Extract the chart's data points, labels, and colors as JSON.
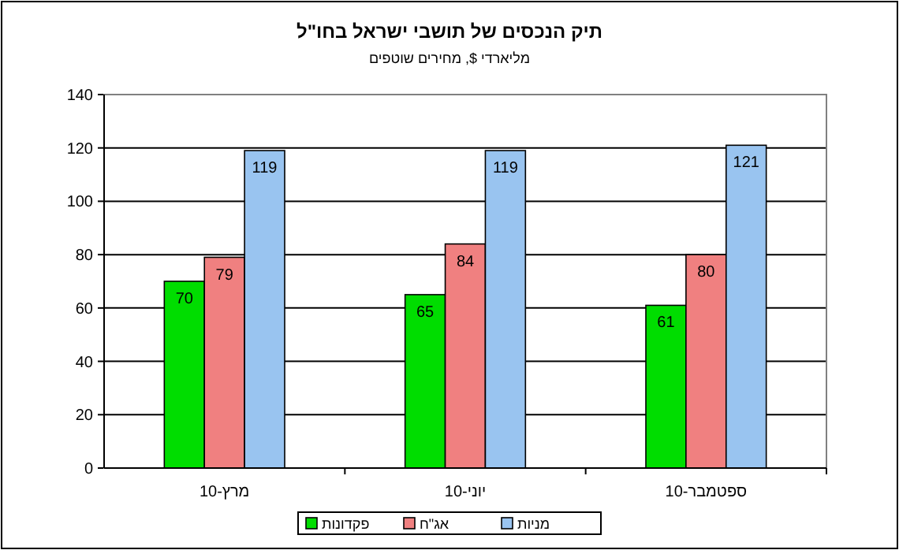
{
  "chart_data": {
    "type": "bar",
    "title": "תיק הנכסים של תושבי ישראל בחו\"ל",
    "subtitle": "מליארדי $, מחירים שוטפים",
    "categories": [
      "מרץ-10",
      "יוני-10",
      "ספטמבר-10"
    ],
    "series": [
      {
        "name": "פקדונות",
        "color": "#00dd00",
        "values": [
          70,
          65,
          61
        ]
      },
      {
        "name": "אג\"ח",
        "color": "#f08080",
        "values": [
          79,
          84,
          80
        ]
      },
      {
        "name": "מניות",
        "color": "#99c4f0",
        "values": [
          119,
          119,
          121
        ]
      }
    ],
    "ylim": [
      0,
      140
    ],
    "yticks": [
      0,
      20,
      40,
      60,
      80,
      100,
      120,
      140
    ],
    "grid": "y",
    "legend": "bottom",
    "data_labels": true
  }
}
